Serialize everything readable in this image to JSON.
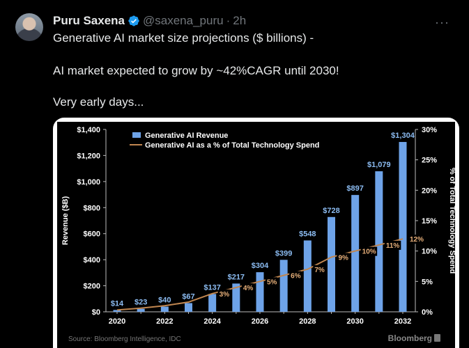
{
  "post": {
    "author_name": "Puru Saxena",
    "handle": "@saxena_puru",
    "separator": "·",
    "time": "2h",
    "more": "···",
    "lines": [
      "Generative AI market size projections ($ billions) -",
      "AI market expected to grow by ~42%CAGR until 2030!",
      "Very early days..."
    ]
  },
  "chart_data": {
    "type": "bar",
    "categories": [
      "2020",
      "2021",
      "2022",
      "2023",
      "2024",
      "2025",
      "2026",
      "2027",
      "2028",
      "2029",
      "2030",
      "2031",
      "2032"
    ],
    "xticks": [
      "2020",
      "2022",
      "2024",
      "2026",
      "2028",
      "2030",
      "2032"
    ],
    "series": [
      {
        "name": "Generative AI Revenue",
        "type": "bar",
        "axis": "left",
        "values": [
          14,
          23,
          40,
          67,
          137,
          217,
          304,
          399,
          548,
          728,
          897,
          1079,
          1304
        ],
        "labels": [
          "$14",
          "$23",
          "$40",
          "$67",
          "$137",
          "$217",
          "$304",
          "$399",
          "$548",
          "$728",
          "$897",
          "$1,079",
          "$1,304"
        ]
      },
      {
        "name": "Generative AI as a % of Total Technology Spend",
        "type": "line",
        "axis": "right",
        "values": [
          0.3,
          0.6,
          1,
          1.6,
          3,
          4,
          5,
          6,
          7,
          9,
          10,
          11,
          12
        ],
        "labels": [
          null,
          null,
          null,
          null,
          "3%",
          "4%",
          "5%",
          "6%",
          "7%",
          "9%",
          "10%",
          "11%",
          "12%"
        ]
      }
    ],
    "ylabel": "Revenue ($B)",
    "ylabel_right": "% of Total Technology Spend",
    "ylim": [
      0,
      1400
    ],
    "ylim_right": [
      0,
      30
    ],
    "yticks": [
      "$0",
      "$200",
      "$400",
      "$600",
      "$800",
      "$1,000",
      "$1,200",
      "$1,400"
    ],
    "yticks_right": [
      "0%",
      "5%",
      "10%",
      "15%",
      "20%",
      "25%",
      "30%"
    ],
    "source": "Source: Bloomberg Intelligence, IDC",
    "brand": "Bloomberg",
    "colors": {
      "bar": "#6ea3e8",
      "line": "#c08650",
      "label": "#e8b07a",
      "bar_label": "#8cbcf2"
    }
  }
}
